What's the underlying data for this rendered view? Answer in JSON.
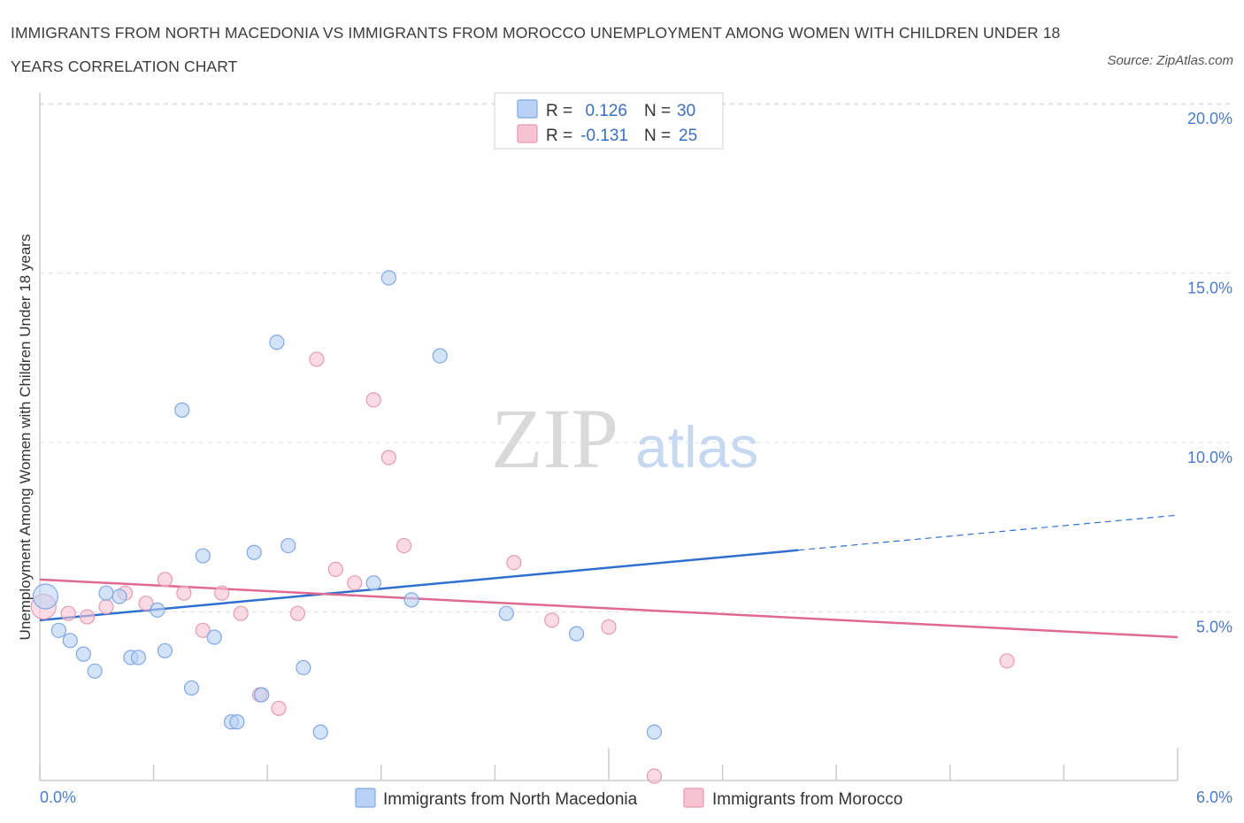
{
  "title": "IMMIGRANTS FROM NORTH MACEDONIA VS IMMIGRANTS FROM MOROCCO UNEMPLOYMENT AMONG WOMEN WITH CHILDREN UNDER 18 YEARS CORRELATION CHART",
  "source": "Source: ZipAtlas.com",
  "watermark": {
    "zip": "ZIP",
    "atlas": "atlas"
  },
  "colors": {
    "blue": "#2f6fd0",
    "blue_fill": "#b9d1f5",
    "pink": "#e0698f",
    "pink_fill": "#f7c3d3"
  },
  "chart_data": {
    "type": "scatter",
    "title": "IMMIGRANTS FROM NORTH MACEDONIA VS IMMIGRANTS FROM MOROCCO UNEMPLOYMENT AMONG WOMEN WITH CHILDREN UNDER 18 YEARS CORRELATION CHART",
    "xlabel": "",
    "ylabel": "Unemployment Among Women with Children Under 18 years",
    "xlim": [
      0,
      6
    ],
    "ylim": [
      0,
      20.5
    ],
    "x_tick_labels": {
      "left": "0.0%",
      "right": "6.0%"
    },
    "y_ticks": [
      {
        "value": 5,
        "label": "5.0%"
      },
      {
        "value": 10,
        "label": "10.0%"
      },
      {
        "value": 15,
        "label": "15.0%"
      },
      {
        "value": 20,
        "label": "20.0%"
      }
    ],
    "legend": {
      "entries": [
        {
          "r_label": "R =",
          "r_value": "0.126",
          "n_label": "N =",
          "n_value": "30"
        },
        {
          "r_label": "R =",
          "r_value": "-0.131",
          "n_label": "N =",
          "n_value": "25"
        }
      ]
    },
    "series": [
      {
        "name": "Immigrants from North Macedonia",
        "color": "#2f6fd0",
        "fill": "#b9d1f5",
        "trend": {
          "x0": 0.0,
          "y0": 5.2,
          "x_solid_end": 4.0,
          "x1": 6.0,
          "y1": 8.3
        },
        "points": [
          [
            0.03,
            5.9
          ],
          [
            0.1,
            4.9
          ],
          [
            0.16,
            4.6
          ],
          [
            0.23,
            4.2
          ],
          [
            0.29,
            3.7
          ],
          [
            0.35,
            6.0
          ],
          [
            0.42,
            5.9
          ],
          [
            0.48,
            4.1
          ],
          [
            0.52,
            4.1
          ],
          [
            0.62,
            5.5
          ],
          [
            0.66,
            4.3
          ],
          [
            0.75,
            11.4
          ],
          [
            0.8,
            3.2
          ],
          [
            0.86,
            7.1
          ],
          [
            0.92,
            4.7
          ],
          [
            1.01,
            2.2
          ],
          [
            1.04,
            2.2
          ],
          [
            1.13,
            7.2
          ],
          [
            1.17,
            3.0
          ],
          [
            1.25,
            13.4
          ],
          [
            1.31,
            7.4
          ],
          [
            1.39,
            3.8
          ],
          [
            1.48,
            1.9
          ],
          [
            1.76,
            6.3
          ],
          [
            1.84,
            15.3
          ],
          [
            1.96,
            5.8
          ],
          [
            2.11,
            13.0
          ],
          [
            2.46,
            5.4
          ],
          [
            2.83,
            4.8
          ],
          [
            3.24,
            1.9
          ]
        ]
      },
      {
        "name": "Immigrants from Morocco",
        "color": "#e0698f",
        "fill": "#f7c3d3",
        "trend": {
          "x0": 0.0,
          "y0": 6.4,
          "x1": 6.0,
          "y1": 4.7
        },
        "points": [
          [
            0.02,
            5.6
          ],
          [
            0.15,
            5.4
          ],
          [
            0.25,
            5.3
          ],
          [
            0.35,
            5.6
          ],
          [
            0.45,
            6.0
          ],
          [
            0.56,
            5.7
          ],
          [
            0.66,
            6.4
          ],
          [
            0.76,
            6.0
          ],
          [
            0.86,
            4.9
          ],
          [
            0.96,
            6.0
          ],
          [
            1.06,
            5.4
          ],
          [
            1.16,
            3.0
          ],
          [
            1.26,
            2.6
          ],
          [
            1.36,
            5.4
          ],
          [
            1.46,
            12.9
          ],
          [
            1.56,
            6.7
          ],
          [
            1.66,
            6.3
          ],
          [
            1.76,
            11.7
          ],
          [
            1.84,
            10.0
          ],
          [
            1.92,
            7.4
          ],
          [
            2.5,
            6.9
          ],
          [
            2.7,
            5.2
          ],
          [
            3.0,
            5.0
          ],
          [
            3.24,
            0.6
          ],
          [
            5.1,
            4.0
          ]
        ]
      }
    ]
  }
}
